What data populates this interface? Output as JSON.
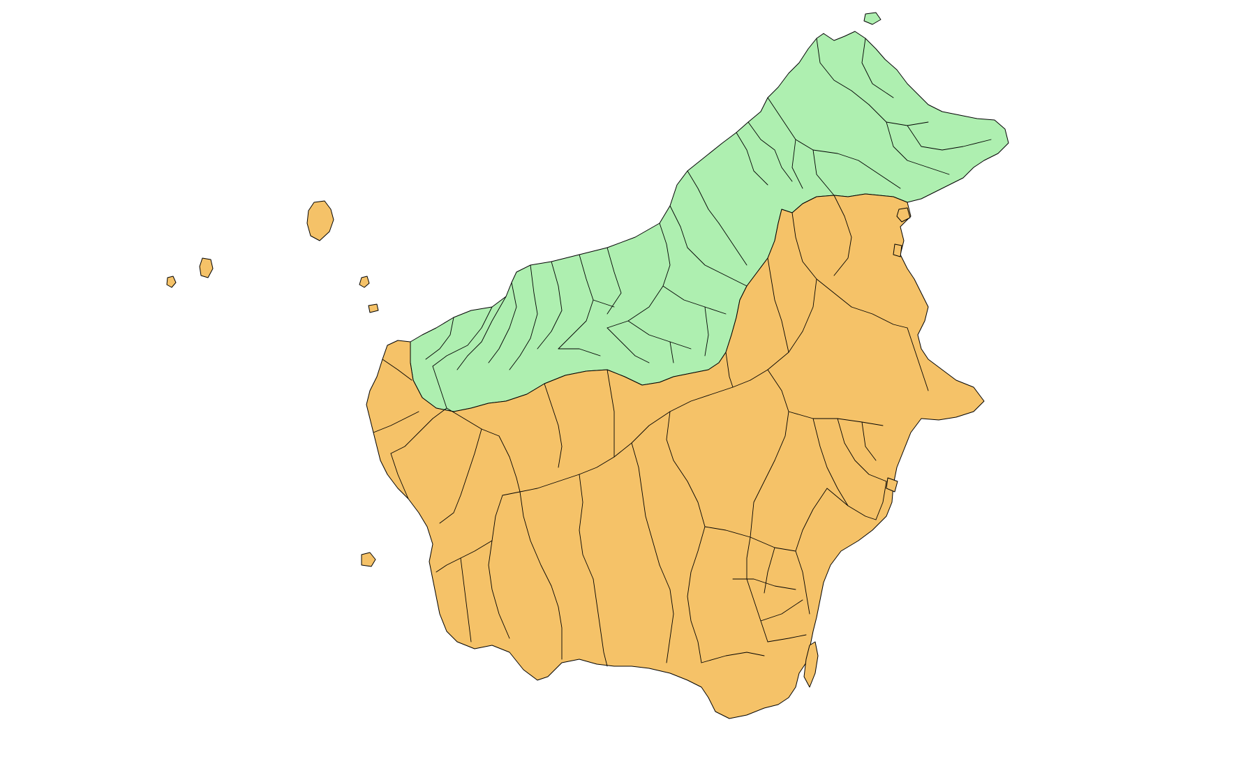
{
  "map": {
    "regions": [
      {
        "id": "malaysia",
        "fill": "#aeefb0"
      },
      {
        "id": "indonesia",
        "fill": "#f5c268"
      }
    ],
    "stroke_color": "#000000",
    "background": "#ffffff"
  }
}
